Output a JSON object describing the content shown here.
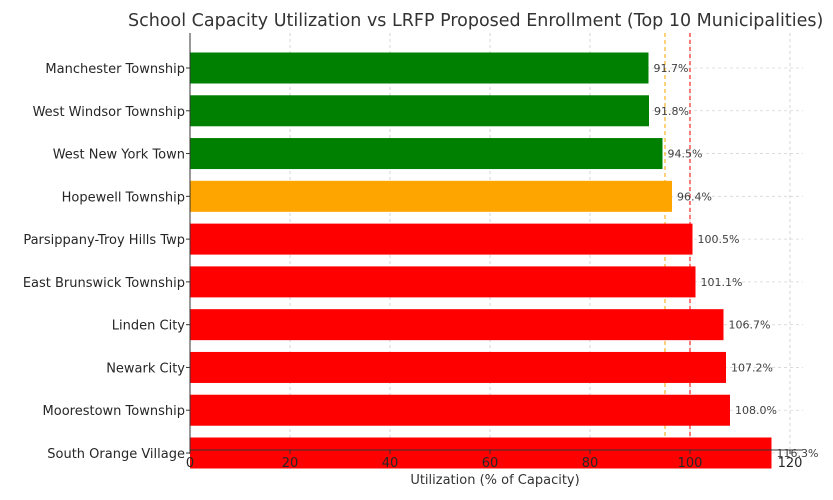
{
  "chart_data": {
    "type": "bar",
    "orientation": "horizontal",
    "title": "School Capacity Utilization vs LRFP Proposed Enrollment (Top 10 Municipalities)",
    "xlabel": "Utilization (% of Capacity)",
    "ylabel": "",
    "xlim": [
      0,
      121
    ],
    "xticks": [
      0,
      20,
      40,
      60,
      80,
      100,
      120
    ],
    "xtick_labels": [
      "0",
      "20",
      "40",
      "60",
      "80",
      "100",
      "120"
    ],
    "grid": true,
    "categories": [
      "Manchester Township",
      "West Windsor Township",
      "West New York Town",
      "Hopewell Township",
      "Parsippany-Troy Hills Twp",
      "East Brunswick Township",
      "Linden City",
      "Newark City",
      "Moorestown Township",
      "South Orange Village"
    ],
    "values": [
      91.7,
      91.8,
      94.5,
      96.4,
      100.5,
      101.1,
      106.7,
      107.2,
      108.0,
      116.3
    ],
    "data_labels": [
      "91.7%",
      "91.8%",
      "94.5%",
      "96.4%",
      "100.5%",
      "101.1%",
      "106.7%",
      "107.2%",
      "108.0%",
      "116.3%"
    ],
    "bar_colors": [
      "#008000",
      "#008000",
      "#008000",
      "#FFA500",
      "#FF0000",
      "#FF0000",
      "#FF0000",
      "#FF0000",
      "#FF0000",
      "#FF0000"
    ],
    "reference_lines": [
      {
        "value": 95,
        "color": "#FFA500",
        "style": "dashed"
      },
      {
        "value": 100,
        "color": "#FF0000",
        "style": "dashed"
      }
    ]
  }
}
